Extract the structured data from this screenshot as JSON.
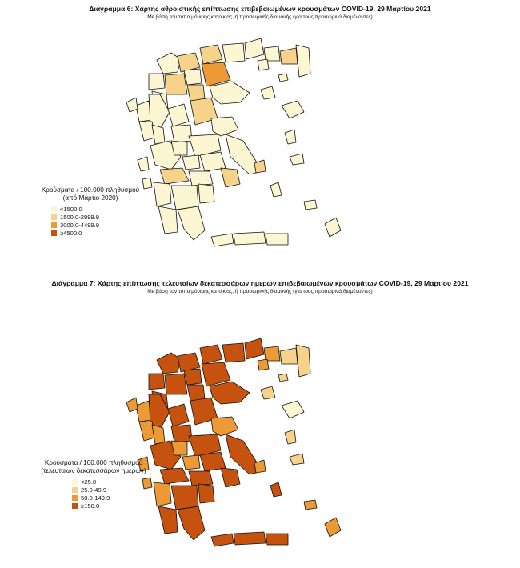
{
  "colors": {
    "c1": "#fcf6d2",
    "c2": "#f6d28a",
    "c3": "#ec9a35",
    "c4": "#c5530f",
    "stroke": "#111111"
  },
  "map1": {
    "title": "Διάγραμμα 6: Χάρτης αθροιστικής επίπτωσης επιβεβαιωμένων κρουσμάτων COVID-19, 29 Μαρτίου 2021",
    "subtitle": "Με βάση τον τόπο μόνιμης κατοικίας, ή προσωρινής διαμονής (για τους προσωρινά διαμένοντες)",
    "legend_title_1": "Κρούσματα / 100.000 πληθυσμού",
    "legend_title_2": "(από Μάρτιο 2020)",
    "legend": [
      {
        "label": "<1500.0",
        "color": "c1"
      },
      {
        "label": "1500.0-2999.9",
        "color": "c2"
      },
      {
        "label": "3000.0-4499.9",
        "color": "c3"
      },
      {
        "label": "≥4500.0",
        "color": "c4"
      }
    ]
  },
  "map2": {
    "title": "Διάγραμμα 7: Χάρτης επίπτωσης τελευταίων δεκατεσσάρων ημερών επιβεβαιωμένων κρουσμάτων COVID-19, 29 Μαρτίου 2021",
    "subtitle": "Με βάση τον τόπο μόνιμης κατοικίας, ή προσωρινής διαμονής (για τους προσωρινά διαμένοντες)",
    "legend_title_1": "Κρούσματα / 100.000 πληθυσμού",
    "legend_title_2": "(τελευταίων δεκατεσσάρων ημερών)",
    "legend": [
      {
        "label": "<25.0",
        "color": "c1"
      },
      {
        "label": "25.0-49.9",
        "color": "c2"
      },
      {
        "label": "50.0-149.9",
        "color": "c3"
      },
      {
        "label": "≥150.0",
        "color": "c4"
      }
    ]
  }
}
